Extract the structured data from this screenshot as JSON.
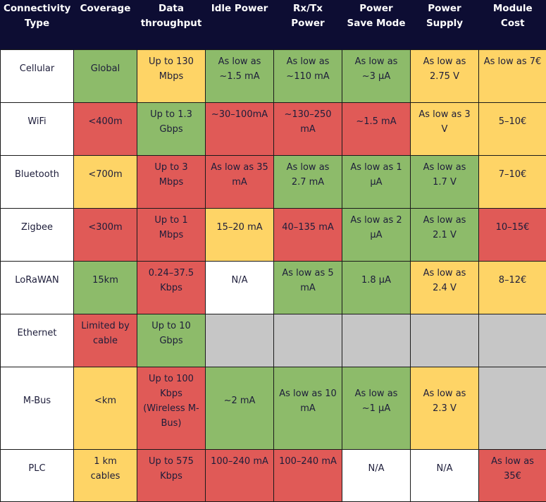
{
  "headers": [
    "Connectivity Type",
    "Coverage",
    "Data throughput",
    "Idle Power",
    "Rx/Tx Power",
    "Power Save Mode",
    "Power Supply",
    "Module Cost"
  ],
  "colors": {
    "header_bg": "#0d0d33",
    "good": "#8dbb6a",
    "medium": "#fed466",
    "bad": "#e05a57",
    "neutral": "#ffffff",
    "empty": "#c6c6c6"
  },
  "rows": [
    {
      "type": "Cellular",
      "cells": [
        {
          "text": "Global",
          "rating": "good"
        },
        {
          "text": "Up to 130 Mbps",
          "rating": "medium"
        },
        {
          "text": "As low as ~1.5 mA",
          "rating": "good"
        },
        {
          "text": "As low as ~110 mA",
          "rating": "good"
        },
        {
          "text": "As low as ~3 μA",
          "rating": "good"
        },
        {
          "text": "As low as 2.75 V",
          "rating": "medium"
        },
        {
          "text": "As low as 7€",
          "rating": "medium"
        }
      ]
    },
    {
      "type": "WiFi",
      "cells": [
        {
          "text": "<400m",
          "rating": "bad"
        },
        {
          "text": "Up to 1.3 Gbps",
          "rating": "good"
        },
        {
          "text": "~30–100mA",
          "rating": "bad"
        },
        {
          "text": "~130–250 mA",
          "rating": "bad"
        },
        {
          "text": "~1.5 mA",
          "rating": "bad"
        },
        {
          "text": "As low as 3 V",
          "rating": "medium"
        },
        {
          "text": "5–10€",
          "rating": "medium"
        }
      ]
    },
    {
      "type": "Bluetooth",
      "cells": [
        {
          "text": "<700m",
          "rating": "medium"
        },
        {
          "text": "Up to 3 Mbps",
          "rating": "bad"
        },
        {
          "text": "As low as 35 mA",
          "rating": "bad"
        },
        {
          "text": "As low as 2.7 mA",
          "rating": "good"
        },
        {
          "text": "As low as 1 μA",
          "rating": "good"
        },
        {
          "text": "As low as 1.7 V",
          "rating": "good"
        },
        {
          "text": "7–10€",
          "rating": "medium"
        }
      ]
    },
    {
      "type": "Zigbee",
      "cells": [
        {
          "text": "<300m",
          "rating": "bad"
        },
        {
          "text": "Up to 1 Mbps",
          "rating": "bad"
        },
        {
          "text": "15–20 mA",
          "rating": "medium"
        },
        {
          "text": "40–135 mA",
          "rating": "bad"
        },
        {
          "text": "As low as 2 μA",
          "rating": "good"
        },
        {
          "text": "As low as 2.1 V",
          "rating": "good"
        },
        {
          "text": "10–15€",
          "rating": "bad"
        }
      ]
    },
    {
      "type": "LoRaWAN",
      "cells": [
        {
          "text": "15km",
          "rating": "good"
        },
        {
          "text": "0.24–37.5 Kbps",
          "rating": "bad"
        },
        {
          "text": "N/A",
          "rating": "neutral"
        },
        {
          "text": "As low as 5 mA",
          "rating": "good"
        },
        {
          "text": "1.8 μA",
          "rating": "good"
        },
        {
          "text": "As low as 2.4 V",
          "rating": "medium"
        },
        {
          "text": "8–12€",
          "rating": "medium"
        }
      ]
    },
    {
      "type": "Ethernet",
      "cells": [
        {
          "text": "Limited by cable",
          "rating": "bad"
        },
        {
          "text": "Up to 10 Gbps",
          "rating": "good"
        },
        {
          "text": "",
          "rating": "empty"
        },
        {
          "text": "",
          "rating": "empty"
        },
        {
          "text": "",
          "rating": "empty"
        },
        {
          "text": "",
          "rating": "empty"
        },
        {
          "text": "",
          "rating": "empty"
        }
      ]
    },
    {
      "type": "M-Bus",
      "cells": [
        {
          "text": "<km",
          "rating": "medium"
        },
        {
          "text": "Up to 100 Kbps (Wireless M-Bus)",
          "rating": "bad"
        },
        {
          "text": "~2 mA",
          "rating": "good"
        },
        {
          "text": "As low as 10 mA",
          "rating": "good"
        },
        {
          "text": "As low as ~1 μA",
          "rating": "good"
        },
        {
          "text": "As low as 2.3 V",
          "rating": "medium"
        },
        {
          "text": "",
          "rating": "empty"
        }
      ]
    },
    {
      "type": "PLC",
      "cells": [
        {
          "text": "1 km cables",
          "rating": "medium"
        },
        {
          "text": "Up to 575 Kbps",
          "rating": "bad"
        },
        {
          "text": "100–240 mA",
          "rating": "bad"
        },
        {
          "text": "100–240 mA",
          "rating": "bad"
        },
        {
          "text": "N/A",
          "rating": "neutral"
        },
        {
          "text": "N/A",
          "rating": "neutral"
        },
        {
          "text": "As low as 35€",
          "rating": "bad"
        }
      ]
    }
  ]
}
